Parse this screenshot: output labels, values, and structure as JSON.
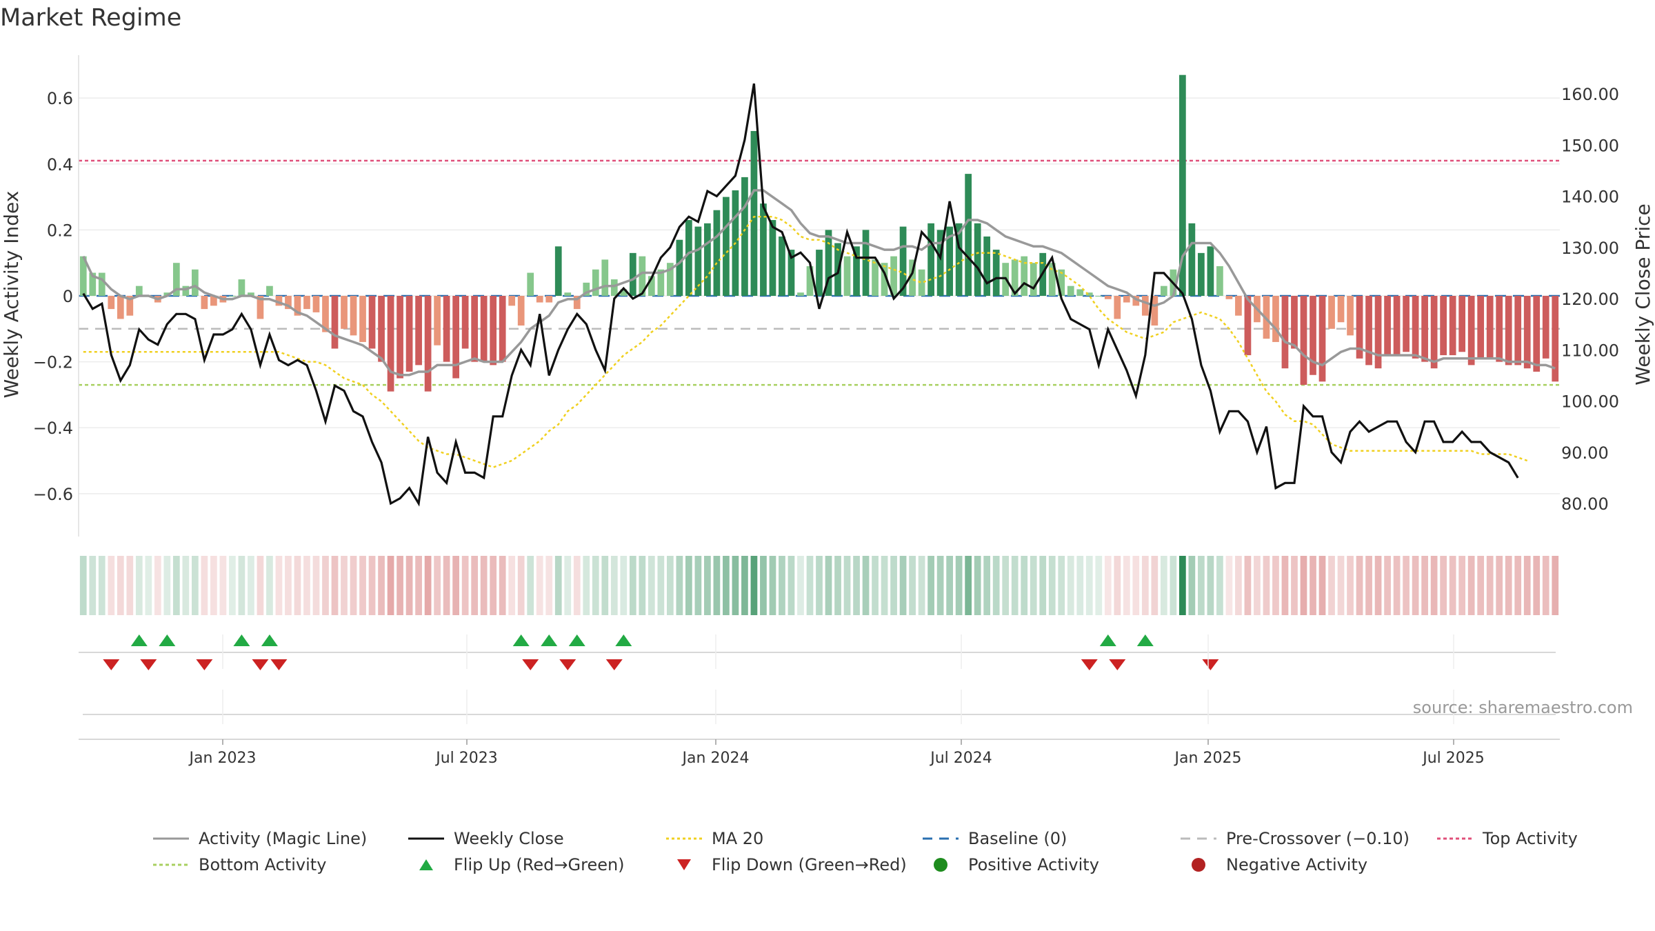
{
  "title": "Market Regime",
  "source": "source: sharemaestro.com",
  "chart_data": {
    "type": "bar+line",
    "title": "Market Regime",
    "ylabel_left": "Weekly Activity Index",
    "ylabel_right": "Weekly Close Price",
    "y_left_ticks": [
      "0.6",
      "0.4",
      "0.2",
      "0",
      "−0.2",
      "−0.4",
      "−0.6"
    ],
    "y_left_values": [
      0.6,
      0.4,
      0.2,
      0,
      -0.2,
      -0.4,
      -0.6
    ],
    "y_left_range": [
      -0.73,
      0.73
    ],
    "y_right_ticks": [
      "160.00",
      "150.00",
      "140.00",
      "130.00",
      "120.00",
      "110.00",
      "100.00",
      "90.00",
      "80.00"
    ],
    "y_right_values": [
      160,
      150,
      140,
      130,
      120,
      110,
      100,
      90,
      80
    ],
    "x_ticks": [
      "Jan 2023",
      "Jul 2023",
      "Jan 2024",
      "Jul 2024",
      "Jan 2025",
      "Jul 2025"
    ],
    "reference_lines": {
      "top_activity": 0.41,
      "bottom_activity": -0.27,
      "pre_crossover": -0.1,
      "baseline": 0
    },
    "activity_index": [
      0.12,
      0.07,
      0.07,
      -0.04,
      -0.07,
      -0.06,
      0.03,
      0.0,
      -0.02,
      0.01,
      0.1,
      0.03,
      0.08,
      -0.04,
      -0.03,
      -0.02,
      0.0,
      0.05,
      0.01,
      -0.07,
      0.03,
      -0.03,
      -0.04,
      -0.06,
      -0.04,
      -0.05,
      -0.11,
      -0.16,
      -0.1,
      -0.12,
      -0.14,
      -0.16,
      -0.2,
      -0.29,
      -0.25,
      -0.23,
      -0.21,
      -0.29,
      -0.15,
      -0.2,
      -0.25,
      -0.16,
      -0.2,
      -0.2,
      -0.21,
      -0.2,
      -0.03,
      -0.09,
      0.07,
      -0.02,
      -0.02,
      0.15,
      0.01,
      -0.04,
      0.04,
      0.08,
      0.11,
      0.05,
      0.02,
      0.13,
      0.12,
      0.06,
      0.08,
      0.1,
      0.17,
      0.23,
      0.21,
      0.22,
      0.26,
      0.3,
      0.32,
      0.36,
      0.5,
      0.28,
      0.23,
      0.18,
      0.14,
      0.01,
      0.09,
      0.14,
      0.2,
      0.16,
      0.12,
      0.15,
      0.2,
      0.11,
      0.1,
      0.12,
      0.21,
      0.11,
      0.08,
      0.22,
      0.2,
      0.21,
      0.22,
      0.37,
      0.22,
      0.18,
      0.14,
      0.1,
      0.11,
      0.12,
      0.1,
      0.13,
      0.1,
      0.08,
      0.03,
      0.02,
      0.01,
      0.0,
      -0.01,
      -0.07,
      -0.02,
      -0.03,
      -0.06,
      -0.09,
      0.03,
      0.08,
      0.67,
      0.22,
      0.13,
      0.15,
      0.09,
      -0.01,
      -0.06,
      -0.18,
      -0.08,
      -0.13,
      -0.14,
      -0.22,
      -0.16,
      -0.27,
      -0.24,
      -0.26,
      -0.1,
      -0.08,
      -0.12,
      -0.19,
      -0.21,
      -0.22,
      -0.18,
      -0.18,
      -0.17,
      -0.19,
      -0.2,
      -0.22,
      -0.18,
      -0.18,
      -0.17,
      -0.21,
      -0.19,
      -0.19,
      -0.2,
      -0.21,
      -0.21,
      -0.22,
      -0.23,
      -0.19,
      -0.26
    ],
    "weekly_close": [
      121,
      118,
      119,
      109,
      104,
      107,
      114,
      112,
      111,
      115,
      117,
      117,
      116,
      108,
      113,
      113,
      114,
      117,
      114,
      107,
      113,
      108,
      107,
      108,
      107,
      102,
      96,
      103,
      102,
      98,
      97,
      92,
      88,
      80,
      81,
      83,
      80,
      93,
      86,
      84,
      92,
      86,
      86,
      85,
      97,
      97,
      105,
      110,
      107,
      117,
      105,
      110,
      114,
      117,
      115,
      110,
      106,
      120,
      122,
      120,
      121,
      124,
      128,
      130,
      134,
      136,
      135,
      141,
      140,
      142,
      144,
      151,
      162,
      138,
      134,
      133,
      128,
      129,
      127,
      118,
      124,
      125,
      133,
      128,
      128,
      128,
      125,
      120,
      122,
      125,
      133,
      131,
      128,
      139,
      130,
      128,
      126,
      123,
      124,
      124,
      121,
      123,
      122,
      125,
      128,
      120,
      116,
      115,
      114,
      107,
      114,
      110,
      106,
      101,
      109,
      125,
      125,
      123,
      121,
      116,
      107,
      102,
      94,
      98,
      98,
      96,
      90,
      95,
      83,
      84,
      84,
      99,
      97,
      97,
      90,
      88,
      94,
      96,
      94,
      95,
      96,
      96,
      92,
      90,
      96,
      96,
      92,
      92,
      94,
      92,
      92,
      90,
      89,
      88,
      85
    ],
    "magic_line": [
      0.12,
      0.06,
      0.05,
      0.02,
      0.0,
      -0.01,
      0.0,
      0.0,
      -0.01,
      0.0,
      0.02,
      0.02,
      0.03,
      0.01,
      0.0,
      -0.01,
      -0.01,
      0.0,
      0.0,
      -0.01,
      -0.01,
      -0.02,
      -0.03,
      -0.05,
      -0.06,
      -0.08,
      -0.1,
      -0.12,
      -0.13,
      -0.14,
      -0.15,
      -0.17,
      -0.19,
      -0.23,
      -0.24,
      -0.24,
      -0.23,
      -0.23,
      -0.21,
      -0.21,
      -0.21,
      -0.2,
      -0.19,
      -0.2,
      -0.2,
      -0.2,
      -0.17,
      -0.14,
      -0.1,
      -0.08,
      -0.06,
      -0.02,
      -0.01,
      -0.01,
      0.01,
      0.02,
      0.03,
      0.03,
      0.04,
      0.05,
      0.07,
      0.07,
      0.07,
      0.08,
      0.1,
      0.13,
      0.14,
      0.16,
      0.18,
      0.21,
      0.24,
      0.27,
      0.32,
      0.32,
      0.3,
      0.28,
      0.26,
      0.22,
      0.19,
      0.18,
      0.18,
      0.17,
      0.16,
      0.16,
      0.16,
      0.15,
      0.14,
      0.14,
      0.15,
      0.15,
      0.14,
      0.16,
      0.16,
      0.18,
      0.19,
      0.23,
      0.23,
      0.22,
      0.2,
      0.18,
      0.17,
      0.16,
      0.15,
      0.15,
      0.14,
      0.13,
      0.11,
      0.09,
      0.07,
      0.05,
      0.03,
      0.02,
      0.01,
      -0.01,
      -0.02,
      -0.03,
      -0.02,
      0.0,
      0.12,
      0.16,
      0.16,
      0.16,
      0.13,
      0.09,
      0.04,
      -0.01,
      -0.04,
      -0.07,
      -0.1,
      -0.14,
      -0.15,
      -0.18,
      -0.2,
      -0.21,
      -0.19,
      -0.17,
      -0.16,
      -0.16,
      -0.17,
      -0.18,
      -0.18,
      -0.18,
      -0.18,
      -0.18,
      -0.19,
      -0.2,
      -0.19,
      -0.19,
      -0.19,
      -0.19,
      -0.19,
      -0.19,
      -0.19,
      -0.2,
      -0.2,
      -0.2,
      -0.21,
      -0.21,
      -0.22
    ],
    "ma20": [
      -0.17,
      -0.17,
      -0.17,
      -0.17,
      -0.17,
      -0.17,
      -0.17,
      -0.17,
      -0.17,
      -0.17,
      -0.17,
      -0.17,
      -0.17,
      -0.17,
      -0.17,
      -0.17,
      -0.17,
      -0.17,
      -0.17,
      -0.17,
      -0.17,
      -0.17,
      -0.18,
      -0.19,
      -0.2,
      -0.2,
      -0.21,
      -0.23,
      -0.25,
      -0.26,
      -0.27,
      -0.3,
      -0.32,
      -0.35,
      -0.38,
      -0.41,
      -0.44,
      -0.46,
      -0.47,
      -0.48,
      -0.48,
      -0.49,
      -0.5,
      -0.51,
      -0.52,
      -0.51,
      -0.5,
      -0.48,
      -0.46,
      -0.44,
      -0.41,
      -0.39,
      -0.35,
      -0.33,
      -0.3,
      -0.27,
      -0.24,
      -0.21,
      -0.18,
      -0.16,
      -0.14,
      -0.11,
      -0.09,
      -0.06,
      -0.03,
      0.0,
      0.03,
      0.06,
      0.1,
      0.13,
      0.16,
      0.2,
      0.24,
      0.24,
      0.24,
      0.23,
      0.21,
      0.18,
      0.17,
      0.17,
      0.16,
      0.14,
      0.13,
      0.12,
      0.11,
      0.1,
      0.09,
      0.08,
      0.07,
      0.05,
      0.04,
      0.05,
      0.06,
      0.08,
      0.1,
      0.12,
      0.13,
      0.13,
      0.13,
      0.12,
      0.11,
      0.1,
      0.1,
      0.1,
      0.08,
      0.07,
      0.05,
      0.03,
      0.0,
      -0.04,
      -0.07,
      -0.09,
      -0.11,
      -0.12,
      -0.13,
      -0.12,
      -0.11,
      -0.08,
      -0.07,
      -0.06,
      -0.05,
      -0.06,
      -0.07,
      -0.1,
      -0.14,
      -0.19,
      -0.24,
      -0.29,
      -0.32,
      -0.36,
      -0.38,
      -0.38,
      -0.39,
      -0.42,
      -0.45,
      -0.46,
      -0.47,
      -0.47,
      -0.47,
      -0.47,
      -0.47,
      -0.47,
      -0.47,
      -0.47,
      -0.47,
      -0.47,
      -0.47,
      -0.47,
      -0.47,
      -0.47,
      -0.48,
      -0.48,
      -0.48,
      -0.48,
      -0.49,
      -0.5
    ],
    "flip_up_weeks": [
      6,
      9,
      17,
      20,
      47,
      50,
      53,
      58,
      110,
      114
    ],
    "flip_down_weeks": [
      3,
      7,
      13,
      19,
      21,
      48,
      52,
      57,
      108,
      111,
      121
    ],
    "legend": [
      "Activity (Magic Line)",
      "Weekly Close",
      "MA 20",
      "Baseline (0)",
      "Pre-Crossover (−0.10)",
      "Top Activity",
      "Bottom Activity",
      "Flip Up (Red→Green)",
      "Flip Down (Green→Red)",
      "Positive Activity",
      "Negative Activity"
    ]
  },
  "colors": {
    "bar_pos_dark": "#2e8b57",
    "bar_pos_light": "#86c78c",
    "bar_neg_dark": "#cd5c5c",
    "bar_neg_light": "#e9967a",
    "close_line": "#111111",
    "magic_line": "#999999",
    "ma20": "#f0d020",
    "baseline": "#2a6fb0",
    "pre_crossover": "#bbbbbb",
    "top_activity": "#e0507a",
    "bottom_activity": "#a8d060",
    "flip_up": "#22aa44",
    "flip_down": "#cc2222",
    "positive_dot": "#1e8c1e",
    "negative_dot": "#b22222"
  }
}
